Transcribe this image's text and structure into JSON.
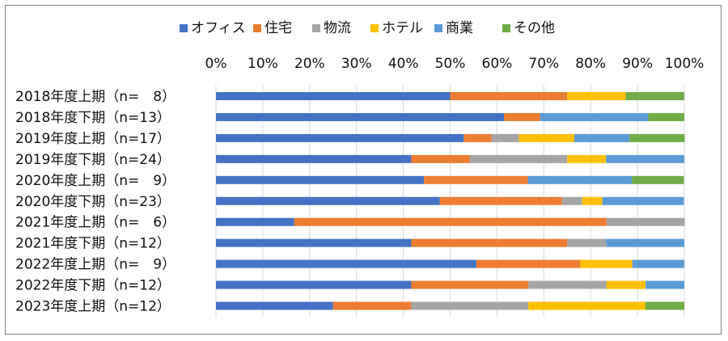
{
  "chart_data": {
    "type": "bar",
    "orientation": "horizontal",
    "stacked": "percent",
    "categories": [
      "2018年度上期（n=　8）",
      "2018年度下期（n=13）",
      "2019年度上期（n=17）",
      "2019年度下期（n=24）",
      "2020年度上期（n=　9）",
      "2020年度下期（n=23）",
      "2021年度上期（n=　6）",
      "2021年度下期（n=12）",
      "2022年度上期（n=　9）",
      "2022年度下期（n=12）",
      "2023年度上期（n=12）"
    ],
    "series": [
      {
        "name": "オフィス",
        "color": "#4472C4",
        "values": [
          50.0,
          61.5,
          52.9,
          41.7,
          44.4,
          47.8,
          16.7,
          41.7,
          55.6,
          41.7,
          25.0
        ]
      },
      {
        "name": "住宅",
        "color": "#ED7D31",
        "values": [
          25.0,
          7.7,
          5.9,
          12.5,
          22.2,
          26.1,
          66.7,
          33.3,
          22.2,
          25.0,
          16.7
        ]
      },
      {
        "name": "物流",
        "color": "#A5A5A5",
        "values": [
          0,
          0,
          5.9,
          20.8,
          0,
          4.3,
          16.7,
          8.3,
          0,
          16.7,
          25.0
        ]
      },
      {
        "name": "ホテル",
        "color": "#FFC000",
        "values": [
          12.5,
          0,
          11.8,
          8.3,
          0,
          4.3,
          0,
          0,
          11.1,
          8.3,
          25.0
        ]
      },
      {
        "name": "商業",
        "color": "#5B9BD5",
        "values": [
          0,
          23.1,
          11.8,
          16.7,
          22.2,
          17.4,
          0,
          16.7,
          11.1,
          8.3,
          0
        ]
      },
      {
        "name": "その他",
        "color": "#70AD47",
        "values": [
          12.5,
          7.7,
          11.8,
          0,
          11.1,
          0,
          0,
          0,
          0,
          0,
          8.3
        ]
      }
    ],
    "xlim": [
      0,
      100
    ],
    "x_ticks": [
      "0%",
      "10%",
      "20%",
      "30%",
      "40%",
      "50%",
      "60%",
      "70%",
      "80%",
      "90%",
      "100%"
    ],
    "title": "",
    "xlabel": "",
    "ylabel": "",
    "legend_position": "top",
    "grid": true
  }
}
